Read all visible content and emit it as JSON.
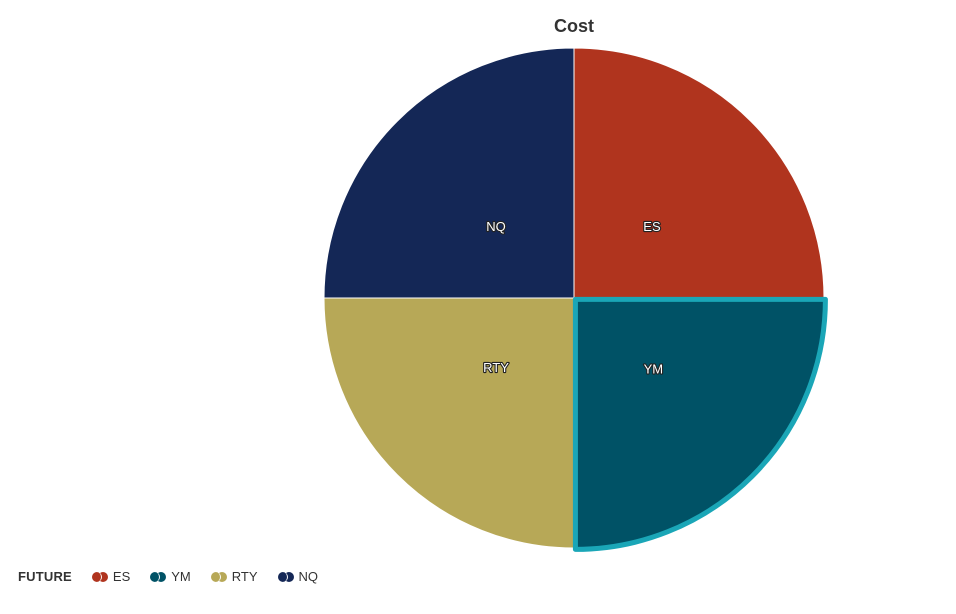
{
  "chart_data": {
    "type": "pie",
    "title": "Cost",
    "slices": [
      {
        "label": "ES",
        "value": 25,
        "color": "#b0341e"
      },
      {
        "label": "YM",
        "value": 25,
        "color": "#005266",
        "highlighted": true,
        "highlight_color": "#1aa6b7"
      },
      {
        "label": "RTY",
        "value": 25,
        "color": "#b7a857"
      },
      {
        "label": "NQ",
        "value": 25,
        "color": "#142756"
      }
    ],
    "legend": {
      "title": "FUTURE",
      "placement": "bottom-left"
    }
  }
}
